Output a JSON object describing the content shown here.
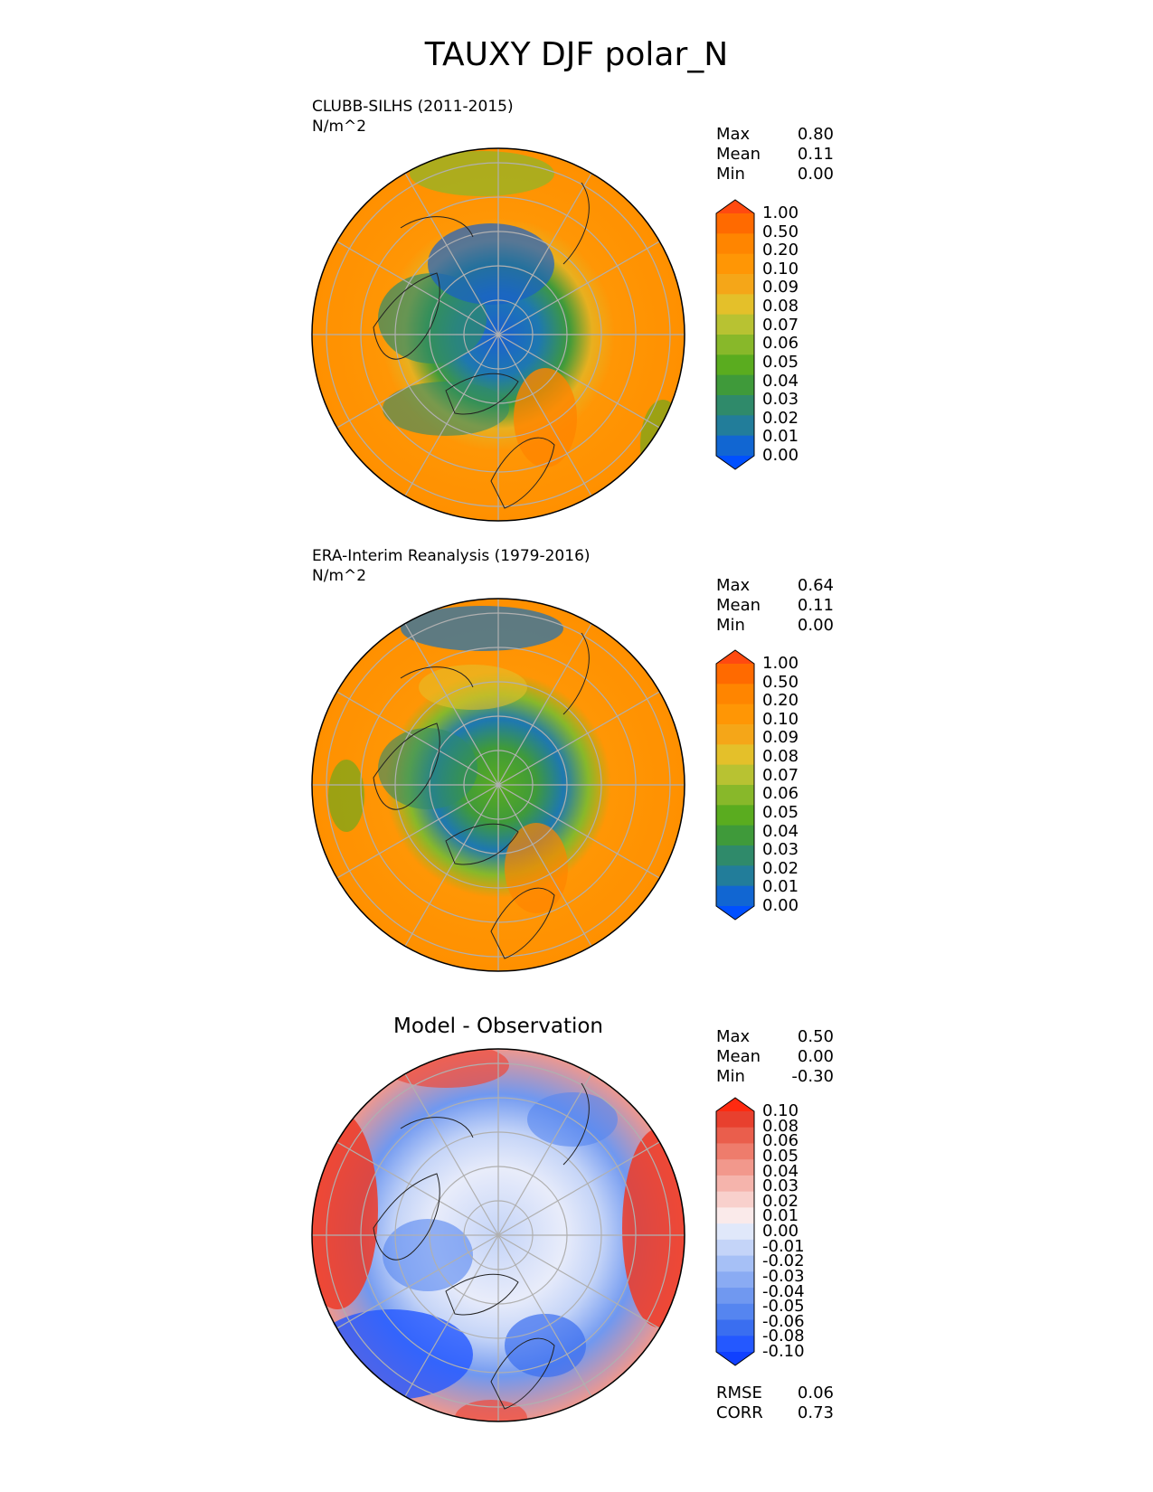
{
  "figure_title": "TAUXY DJF polar_N",
  "panels": [
    {
      "title": "CLUBB-SILHS (2011-2015)",
      "units": "N/m^2",
      "stats": {
        "max_label": "Max",
        "max": "0.80",
        "mean_label": "Mean",
        "mean": "0.11",
        "min_label": "Min",
        "min": "0.00"
      },
      "colorbar_ticks": [
        "1.00",
        "0.50",
        "0.20",
        "0.10",
        "0.09",
        "0.08",
        "0.07",
        "0.06",
        "0.05",
        "0.04",
        "0.03",
        "0.02",
        "0.01",
        "0.00"
      ]
    },
    {
      "title": "ERA-Interim Reanalysis (1979-2016)",
      "units": "N/m^2",
      "stats": {
        "max_label": "Max",
        "max": "0.64",
        "mean_label": "Mean",
        "mean": "0.11",
        "min_label": "Min",
        "min": "0.00"
      },
      "colorbar_ticks": [
        "1.00",
        "0.50",
        "0.20",
        "0.10",
        "0.09",
        "0.08",
        "0.07",
        "0.06",
        "0.05",
        "0.04",
        "0.03",
        "0.02",
        "0.01",
        "0.00"
      ]
    },
    {
      "title": "Model - Observation",
      "stats": {
        "max_label": "Max",
        "max": "0.50",
        "mean_label": "Mean",
        "mean": "0.00",
        "min_label": "Min",
        "min": "-0.30"
      },
      "colorbar_ticks": [
        "0.10",
        "0.08",
        "0.06",
        "0.05",
        "0.04",
        "0.03",
        "0.02",
        "0.01",
        "0.00",
        "-0.01",
        "-0.02",
        "-0.03",
        "-0.04",
        "-0.05",
        "-0.06",
        "-0.08",
        "-0.10"
      ],
      "metrics": {
        "rmse_label": "RMSE",
        "rmse": "0.06",
        "corr_label": "CORR",
        "corr": "0.73"
      }
    }
  ],
  "colors": {
    "field_scale": [
      "#0050ff",
      "#1166d2",
      "#227d9a",
      "#2f8a6a",
      "#3f9a3a",
      "#5aac1f",
      "#88b82a",
      "#b8c232",
      "#e4c02a",
      "#f5a618",
      "#ff9605",
      "#ff8500",
      "#ff6a00",
      "#ff4a10"
    ],
    "diff_scale": [
      "#1040ff",
      "#2458ff",
      "#3a6ef0",
      "#5585f0",
      "#7098f0",
      "#8aabf3",
      "#a6c0f6",
      "#c4d4f8",
      "#e0e8fa",
      "#faeaea",
      "#f8d0cc",
      "#f5b4ac",
      "#f2988c",
      "#ee7c6c",
      "#ea5e4c",
      "#e8402e",
      "#ff2a10"
    ]
  }
}
